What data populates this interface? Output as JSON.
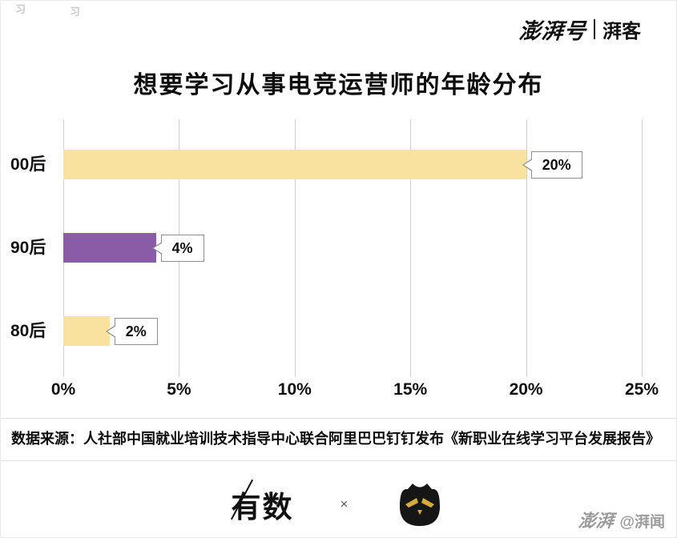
{
  "header": {
    "brand_left": "澎湃号",
    "brand_right": "湃客"
  },
  "decor": {
    "fragments": [
      "习",
      "习"
    ]
  },
  "chart_data": {
    "type": "bar",
    "orientation": "horizontal",
    "title": "想要学习从事电竞运营师的年龄分布",
    "categories": [
      "00后",
      "90后",
      "80后"
    ],
    "values": [
      20,
      4,
      2
    ],
    "value_labels": [
      "20%",
      "4%",
      "2%"
    ],
    "bar_colors": [
      "#F9E2A0",
      "#8A5BA6",
      "#F9E2A0"
    ],
    "x_ticks": [
      "0%",
      "5%",
      "10%",
      "15%",
      "20%",
      "25%"
    ],
    "xlim": [
      0,
      25
    ],
    "grid": true,
    "grid_color": "#cfcfcf",
    "callout_border_color": "#8f8f8f",
    "legend": "none"
  },
  "source": "数据来源：人社部中国就业培训技术指导中心联合阿里巴巴钉钉发布《新职业在线学习平台发展报告》",
  "footer": {
    "left_logo": "有数",
    "separator": "×",
    "owl_icon": "owl-logo",
    "watermark_brand": "澎湃",
    "watermark_author": "@湃闻"
  }
}
